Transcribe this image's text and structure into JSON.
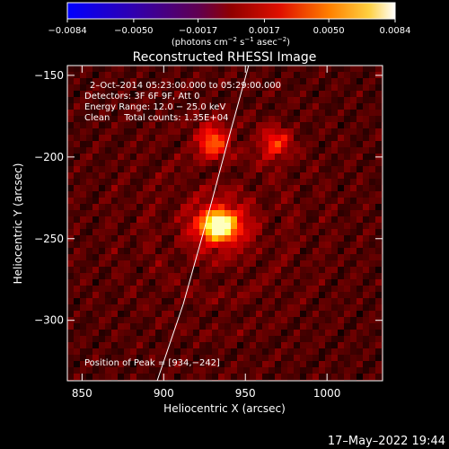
{
  "chart_data": {
    "type": "heatmap",
    "title": "Reconstructed RHESSI Image",
    "xlabel": "Heliocentric X (arcsec)",
    "ylabel": "Heliocentric Y (arcsec)",
    "xlim": [
      841,
      1034
    ],
    "ylim": [
      -337,
      -144
    ],
    "x_ticks": [
      850,
      900,
      950,
      1000
    ],
    "x_tick_labels": [
      "850",
      "900",
      "950",
      "1000"
    ],
    "y_ticks": [
      -150,
      -200,
      -250,
      -300
    ],
    "y_tick_labels": [
      "−150",
      "−200",
      "−250",
      "−300"
    ],
    "colorbar": {
      "colormap": "hot",
      "range": [
        -0.0084,
        0.0084
      ],
      "ticks": [
        -0.0084,
        -0.005,
        -0.0017,
        0.0017,
        0.005,
        0.0084
      ],
      "tick_labels": [
        "−0.0084",
        "−0.0050",
        "−0.0017",
        "0.0017",
        "0.0050",
        "0.0084"
      ],
      "units_text": "(photons cm",
      "units_sup1": "−2",
      "units_mid": " s",
      "units_sup2": "−1",
      "units_mid2": " asec",
      "units_sup3": "−2",
      "units_end": ")"
    },
    "annotations": [
      "2–Oct–2014 05:23:00.000 to 05:29:00.000",
      "Detectors: 3F 6F 9F, Att 0",
      "Energy Range: 12.0 − 25.0 keV",
      "Clean     Total counts: 1.35E+04"
    ],
    "peak_label": "Position of Peak = [934,−242]",
    "peak": {
      "x": 934,
      "y": -242
    },
    "secondary_sources": [
      {
        "x": 930,
        "y": -190,
        "strength": 0.45
      },
      {
        "x": 968,
        "y": -192,
        "strength": 0.35
      }
    ],
    "limb_curve": [
      [
        896,
        -337
      ],
      [
        912,
        -290
      ],
      [
        926,
        -240
      ],
      [
        938,
        -195
      ],
      [
        952,
        -144
      ]
    ],
    "timestamp": "17–May–2022 19:44"
  }
}
